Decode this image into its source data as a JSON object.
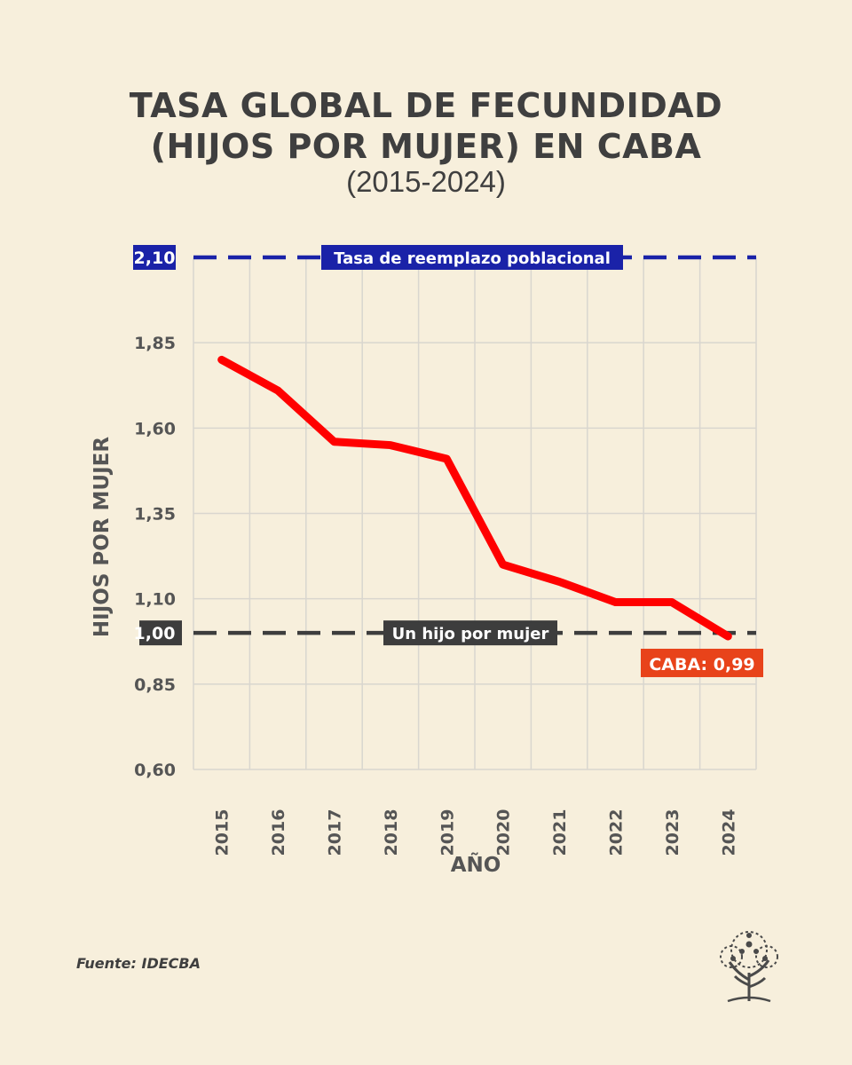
{
  "header": {
    "title_line1": "TASA GLOBAL DE FECUNDIDAD",
    "title_line2": "(HIJOS POR MUJER) EN CABA",
    "subtitle": "(2015-2024)"
  },
  "footer": {
    "source": "Fuente: IDECBA",
    "logo_icon": "tree-icon"
  },
  "chart_data": {
    "type": "line",
    "xlabel": "AÑO",
    "ylabel": "HIJOS POR MUJER",
    "x": [
      "2015",
      "2016",
      "2017",
      "2018",
      "2019",
      "2020",
      "2021",
      "2022",
      "2023",
      "2024"
    ],
    "yticks": [
      "0,60",
      "0,85",
      "1,10",
      "1,35",
      "1,60",
      "1,85"
    ],
    "ytick_values": [
      0.6,
      0.85,
      1.1,
      1.35,
      1.6,
      1.85
    ],
    "ylim": [
      0.6,
      2.1
    ],
    "grid": true,
    "series": [
      {
        "values": [
          1.8,
          1.71,
          1.56,
          1.55,
          1.51,
          1.2,
          1.15,
          1.09,
          1.09,
          0.99
        ],
        "color": "#ff0000"
      }
    ],
    "reference_lines": [
      {
        "value": 2.1,
        "value_label": "2,10",
        "label": "Tasa de reemplazo poblacional",
        "color": "#1a22a8"
      },
      {
        "value": 1.0,
        "value_label": "1,00",
        "label": "Un hijo por mujer",
        "color": "#3d3d3d"
      }
    ],
    "annotations": [
      {
        "text": "CABA: 0,99",
        "x": "2024",
        "y": 0.99,
        "color": "#e8431a"
      }
    ]
  }
}
